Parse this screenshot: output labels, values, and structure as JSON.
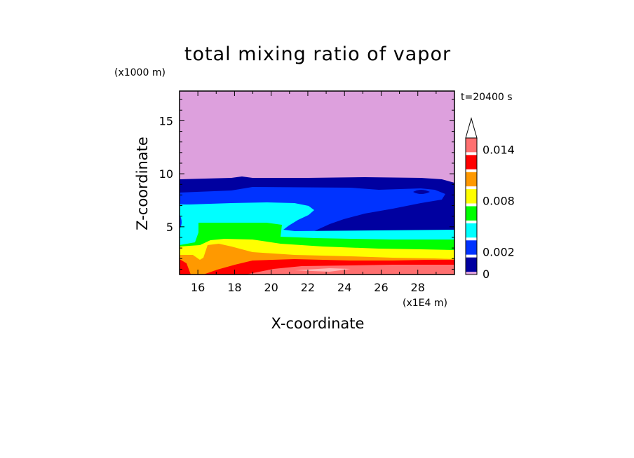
{
  "chart_data": {
    "type": "heatmap",
    "title": "total mixing ratio of vapor",
    "xlabel": "X-coordinate",
    "ylabel": "Z-coordinate",
    "x_unit": "(x1E4 m)",
    "y_unit": "(x1000 m)",
    "time_label": "t=20400 s",
    "xlim": [
      15,
      30
    ],
    "ylim": [
      0.5,
      17.8
    ],
    "x_ticks": [
      16,
      18,
      20,
      22,
      24,
      26,
      28
    ],
    "y_ticks": [
      5,
      10,
      15
    ],
    "grid": false,
    "colorbar": {
      "levels": [
        0,
        0.002,
        0.004,
        0.006,
        0.008,
        0.01,
        0.012,
        0.014,
        0.016
      ],
      "labels": [
        "0",
        "0.002",
        "0.008",
        "0.014"
      ],
      "label_values": [
        0,
        0.002,
        0.008,
        0.014
      ],
      "colors": [
        "#dda0dd",
        "#0000a0",
        "#0033ff",
        "#00ffff",
        "#00ff00",
        "#ffff00",
        "#ff9900",
        "#ff0000",
        "#ff7070",
        "#ffb6b6"
      ],
      "extend": "max"
    },
    "regions": [
      {
        "value_range": [
          0,
          0.0
        ],
        "color": "#dda0dd",
        "z_range": [
          9.5,
          17.8
        ]
      },
      {
        "value_range": [
          0.0,
          0.001
        ],
        "color": "#0000a0",
        "z_range": [
          8.0,
          9.5
        ]
      },
      {
        "value_range": [
          0.001,
          0.002
        ],
        "color": "#0033ff",
        "z_range": [
          4.5,
          8.0
        ]
      },
      {
        "value_range": [
          0.002,
          0.004
        ],
        "color": "#00ffff",
        "z_range": [
          3.8,
          6.9
        ]
      },
      {
        "value_range": [
          0.004,
          0.006
        ],
        "color": "#00ff00",
        "z_range": [
          3.0,
          5.3
        ]
      },
      {
        "value_range": [
          0.006,
          0.008
        ],
        "color": "#ffff00",
        "z_range": [
          2.2,
          3.9
        ]
      },
      {
        "value_range": [
          0.008,
          0.01
        ],
        "color": "#ff9900",
        "z_range": [
          1.3,
          3.0
        ]
      },
      {
        "value_range": [
          0.01,
          0.012
        ],
        "color": "#ff0000",
        "z_range": [
          0.5,
          2.0
        ]
      },
      {
        "value_range": [
          0.012,
          0.014
        ],
        "color": "#ff7070",
        "z_range": [
          0.5,
          1.5
        ]
      }
    ]
  }
}
